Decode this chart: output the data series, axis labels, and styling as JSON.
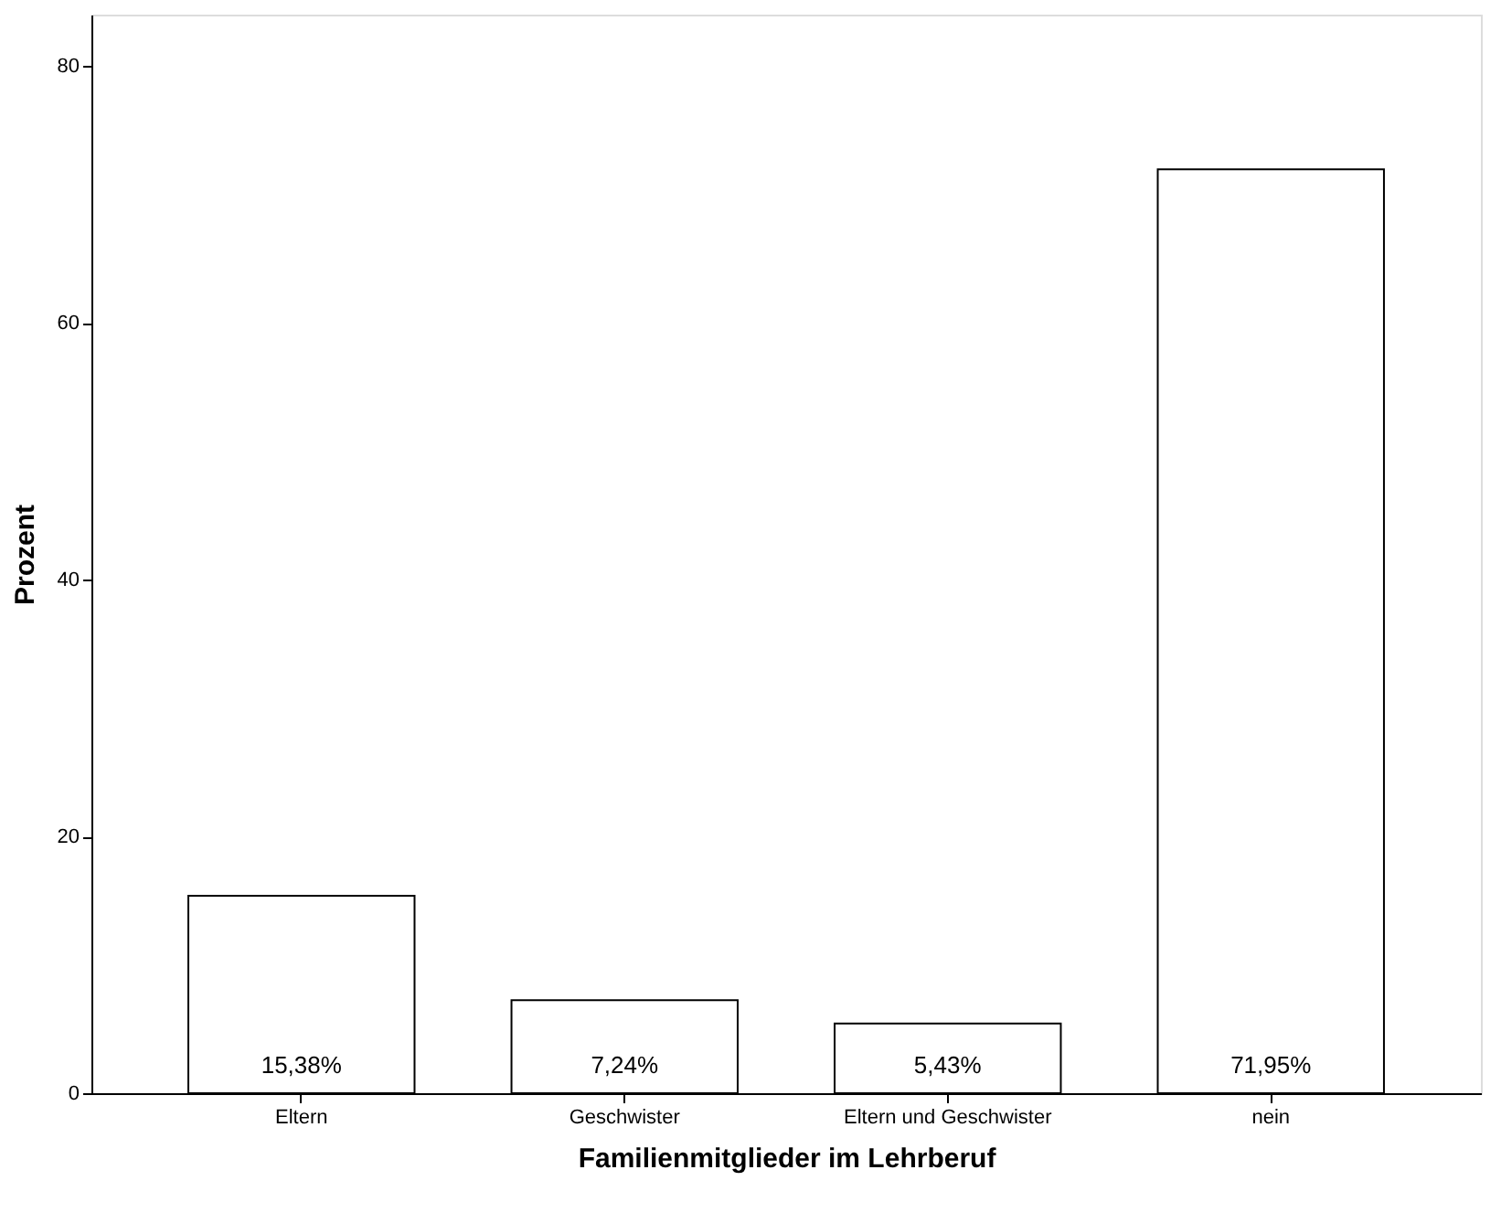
{
  "chart_data": {
    "type": "bar",
    "categories": [
      "Eltern",
      "Geschwister",
      "Eltern und Geschwister",
      "nein"
    ],
    "values": [
      15.38,
      7.24,
      5.43,
      71.95
    ],
    "value_labels": [
      "15,38%",
      "7,24%",
      "5,43%",
      "71,95%"
    ],
    "color": "#ffffff",
    "xlabel": "Familienmitglieder im Lehrberuf",
    "ylabel": "Prozent",
    "ylim": [
      0,
      84
    ],
    "yticks": [
      0,
      20,
      40,
      60,
      80
    ],
    "grid": false
  }
}
